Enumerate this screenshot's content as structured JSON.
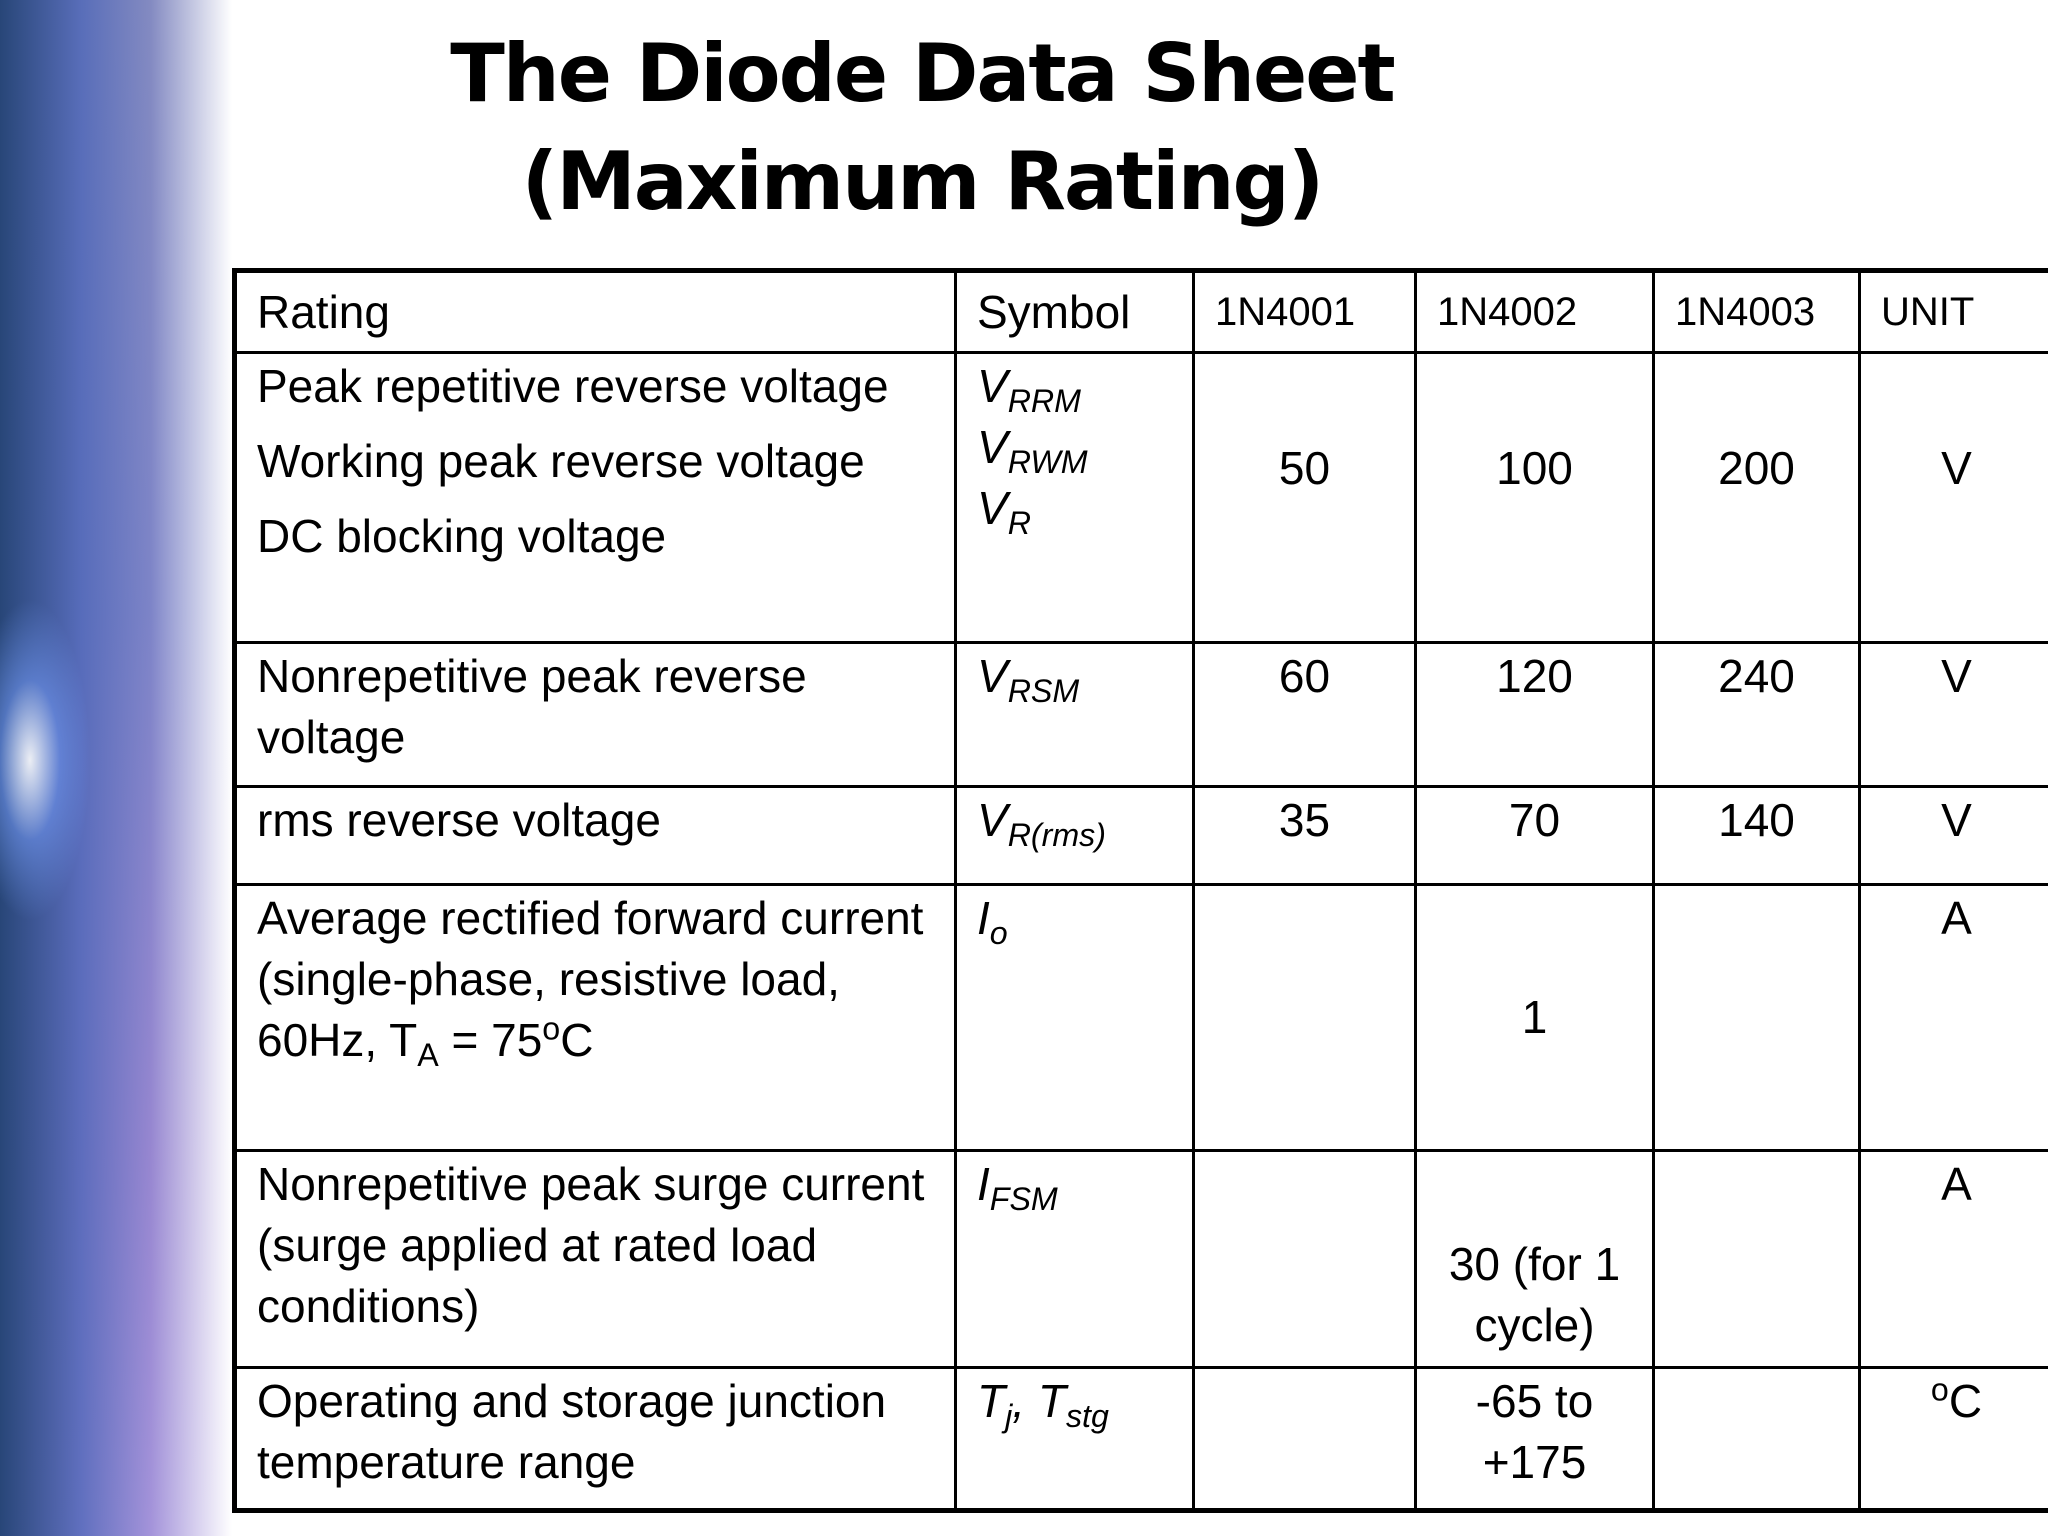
{
  "title": {
    "lines": [
      "The Diode Data Sheet",
      "(Maximum Rating)"
    ]
  },
  "table": {
    "header": [
      "Rating",
      "Symbol",
      "1N4001",
      "1N4002",
      "1N4003",
      "UNIT"
    ],
    "rows": [
      {
        "rating": [
          [
            {
              "text": "Peak repetitive reverse voltage"
            }
          ],
          [
            {
              "text": "Working peak reverse voltage"
            }
          ],
          [
            {
              "text": "DC blocking voltage"
            }
          ]
        ],
        "symbol": [
          [
            {
              "text": "V"
            },
            {
              "text": "RRM",
              "script": "sub"
            }
          ],
          [
            {
              "text": "V"
            },
            {
              "text": "RWM",
              "script": "sub"
            }
          ],
          [
            {
              "text": "V"
            },
            {
              "text": "R",
              "script": "sub"
            }
          ]
        ],
        "values": [
          50,
          100,
          200
        ],
        "unit": [
          {
            "text": "V"
          }
        ]
      },
      {
        "rating": [
          [
            {
              "text": "Nonrepetitive peak reverse voltage"
            }
          ]
        ],
        "symbol": [
          [
            {
              "text": "V"
            },
            {
              "text": "RSM",
              "script": "sub"
            }
          ]
        ],
        "values": [
          60,
          120,
          240
        ],
        "unit": [
          {
            "text": "V"
          }
        ]
      },
      {
        "rating": [
          [
            {
              "text": "rms reverse voltage"
            }
          ]
        ],
        "symbol": [
          [
            {
              "text": "V"
            },
            {
              "text": "R(rms)",
              "script": "sub"
            }
          ]
        ],
        "values": [
          35,
          70,
          140
        ],
        "unit": [
          {
            "text": "V"
          }
        ]
      },
      {
        "rating": [
          [
            {
              "text": "Average rectified forward current (single-phase, resistive load, 60Hz, T"
            },
            {
              "text": "A",
              "script": "sub"
            },
            {
              "text": " = 75"
            },
            {
              "text": "o",
              "script": "sup"
            },
            {
              "text": "C"
            }
          ]
        ],
        "symbol": [
          [
            {
              "text": "I"
            },
            {
              "text": "o",
              "script": "sub"
            }
          ]
        ],
        "values": [
          null,
          1,
          null
        ],
        "unit": [
          {
            "text": "A"
          }
        ]
      },
      {
        "rating": [
          [
            {
              "text": "Nonrepetitive peak surge current (surge applied at rated load conditions)"
            }
          ]
        ],
        "symbol": [
          [
            {
              "text": "I"
            },
            {
              "text": "FSM",
              "script": "sub"
            }
          ]
        ],
        "values": [
          null,
          "30 (for 1 cycle)",
          null
        ],
        "unit": [
          {
            "text": "A"
          }
        ]
      },
      {
        "rating": [
          [
            {
              "text": "Operating and storage junction temperature range"
            }
          ]
        ],
        "symbol": [
          [
            {
              "text": "T"
            },
            {
              "text": "j",
              "script": "sub"
            },
            {
              "text": ", T"
            },
            {
              "text": "stg",
              "script": "sub"
            }
          ]
        ],
        "values": [
          null,
          "-65 to +175",
          null
        ],
        "unit": [
          {
            "text": "o",
            "script": "sup"
          },
          {
            "text": "C"
          }
        ]
      }
    ]
  }
}
